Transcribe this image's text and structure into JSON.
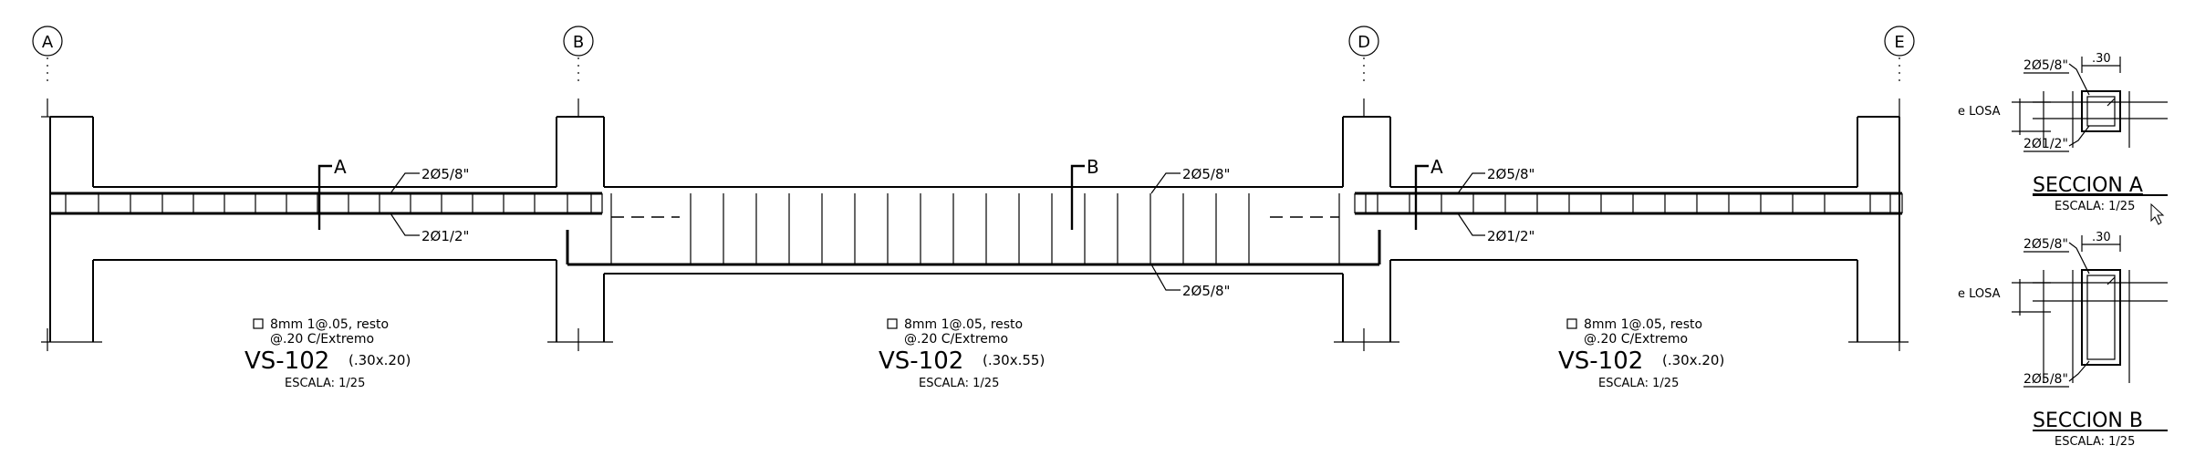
{
  "grid_axes": [
    "A",
    "B",
    "D",
    "E"
  ],
  "beam_segments": [
    {
      "stirrup_note_line1": "8mm  1@.05, resto",
      "stirrup_note_line2": "@.20 C/Extremo",
      "beam_name": "VS-102",
      "beam_size": "(.30x.20)",
      "scale": "ESCALA:  1/25",
      "section_mark": "A",
      "top_bar": "2Ø5/8\"",
      "bottom_bar": "2Ø1/2\""
    },
    {
      "stirrup_note_line1": "8mm  1@.05, resto",
      "stirrup_note_line2": "@.20 C/Extremo",
      "beam_name": "VS-102",
      "beam_size": "(.30x.55)",
      "scale": "ESCALA:  1/25",
      "section_mark": "B",
      "top_bar": "2Ø5/8\"",
      "bottom_bar": "2Ø5/8\""
    },
    {
      "stirrup_note_line1": "8mm  1@.05, resto",
      "stirrup_note_line2": "@.20 C/Extremo",
      "beam_name": "VS-102",
      "beam_size": "(.30x.20)",
      "scale": "ESCALA:  1/25",
      "section_mark": "A",
      "top_bar": "2Ø5/8\"",
      "bottom_bar": "2Ø1/2\""
    }
  ],
  "sections": [
    {
      "title": "SECCION A",
      "scale": "ESCALA:  1/25",
      "top_bar": "2Ø5/8\"",
      "bottom_bar": "2Ø1/2\"",
      "width": ".30",
      "slab_label": "e  LOSA"
    },
    {
      "title": "SECCION B",
      "scale": "ESCALA:  1/25",
      "top_bar": "2Ø5/8\"",
      "bottom_bar": "2Ø5/8\"",
      "width": ".30",
      "slab_label": "e  LOSA"
    }
  ]
}
